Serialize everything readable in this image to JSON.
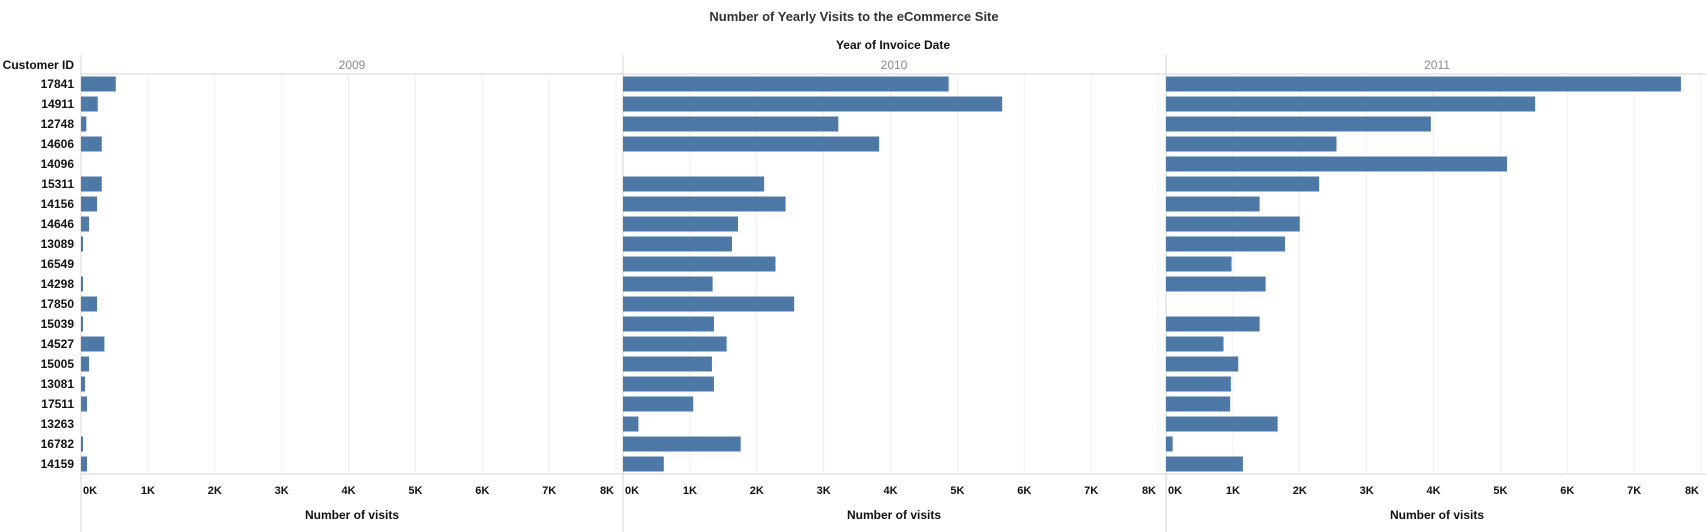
{
  "chart_data": {
    "type": "bar",
    "orientation": "horizontal",
    "title": "Number of Yearly Visits to the eCommerce Site",
    "column_header": "Year of Invoice Date",
    "row_header": "Customer ID",
    "xlabel": "Number of visits",
    "xlim": [
      0,
      8000
    ],
    "x_ticks": [
      "0K",
      "1K",
      "2K",
      "3K",
      "4K",
      "5K",
      "6K",
      "7K",
      "8K"
    ],
    "grid": true,
    "bar_color": "#4e79a7",
    "categories": [
      "17841",
      "14911",
      "12748",
      "14606",
      "14096",
      "15311",
      "14156",
      "14646",
      "13089",
      "16549",
      "14298",
      "17850",
      "15039",
      "14527",
      "15005",
      "13081",
      "17511",
      "13263",
      "16782",
      "14159"
    ],
    "series": [
      {
        "name": "2009",
        "values": [
          520,
          250,
          80,
          310,
          0,
          310,
          240,
          120,
          30,
          0,
          30,
          240,
          30,
          350,
          120,
          60,
          90,
          0,
          30,
          90
        ]
      },
      {
        "name": "2010",
        "values": [
          4870,
          5670,
          3220,
          3830,
          0,
          2110,
          2430,
          1720,
          1630,
          2280,
          1340,
          2560,
          1360,
          1550,
          1330,
          1360,
          1050,
          230,
          1760,
          610
        ]
      },
      {
        "name": "2011",
        "values": [
          7700,
          5520,
          3960,
          2550,
          5100,
          2290,
          1400,
          2000,
          1780,
          980,
          1490,
          0,
          1400,
          860,
          1080,
          970,
          960,
          1670,
          100,
          1150
        ]
      }
    ]
  }
}
